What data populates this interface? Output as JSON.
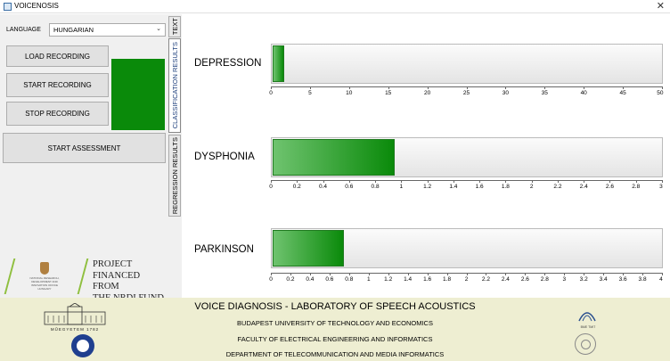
{
  "window": {
    "title": "VOICENOSIS",
    "close_glyph": "✕"
  },
  "left": {
    "language_label": "LANGUAGE",
    "language_value": "HUNGARIAN",
    "buttons": {
      "load": "LOAD RECORDING",
      "start": "START RECORDING",
      "stop": "STOP RECORDING",
      "assess": "START ASSESSMENT"
    },
    "indicator_color": "#0a8a0a",
    "project_lines": [
      "PROJECT",
      "FINANCED FROM",
      "THE NRDI FUND"
    ],
    "nrdi_small": "NATIONAL RESEARCH, DEVELOPMENT AND INNOVATION OFFICE HUNGARY"
  },
  "tabs": [
    "TEXT",
    "CLASSIFICATION RESULTS",
    "REGRESSION RESULTS"
  ],
  "results": [
    {
      "label": "DEPRESSION",
      "value": 1.5,
      "max": 50,
      "ticks": [
        "0",
        "5",
        "10",
        "15",
        "20",
        "25",
        "30",
        "35",
        "40",
        "45",
        "50"
      ]
    },
    {
      "label": "DYSPHONIA",
      "value": 0.94,
      "max": 3,
      "ticks": [
        "0",
        "0.2",
        "0.4",
        "0.6",
        "0.8",
        "1",
        "1.2",
        "1.4",
        "1.6",
        "1.8",
        "2",
        "2.2",
        "2.4",
        "2.6",
        "2.8",
        "3"
      ]
    },
    {
      "label": "PARKINSON",
      "value": 0.73,
      "max": 4,
      "ticks": [
        "0",
        "0.2",
        "0.4",
        "0.6",
        "0.8",
        "1",
        "1.2",
        "1.4",
        "1.6",
        "1.8",
        "2",
        "2.2",
        "2.4",
        "2.6",
        "2.8",
        "3",
        "3.2",
        "3.4",
        "3.6",
        "3.8",
        "4"
      ]
    }
  ],
  "footer": {
    "title": "VOICE DIAGNOSIS - LABORATORY OF SPEECH ACOUSTICS",
    "lines": [
      "BUDAPEST UNIVERSITY OF TECHNOLOGY AND ECONOMICS",
      "FACULTY OF ELECTRICAL ENGINEERING AND INFORMATICS",
      "DEPARTMENT OF TELECOMMUNICATION AND MEDIA INFORMATICS"
    ],
    "muegyetem": "MŰEGYETEM 1782",
    "speechlab_caption": "BME TMIT"
  }
}
